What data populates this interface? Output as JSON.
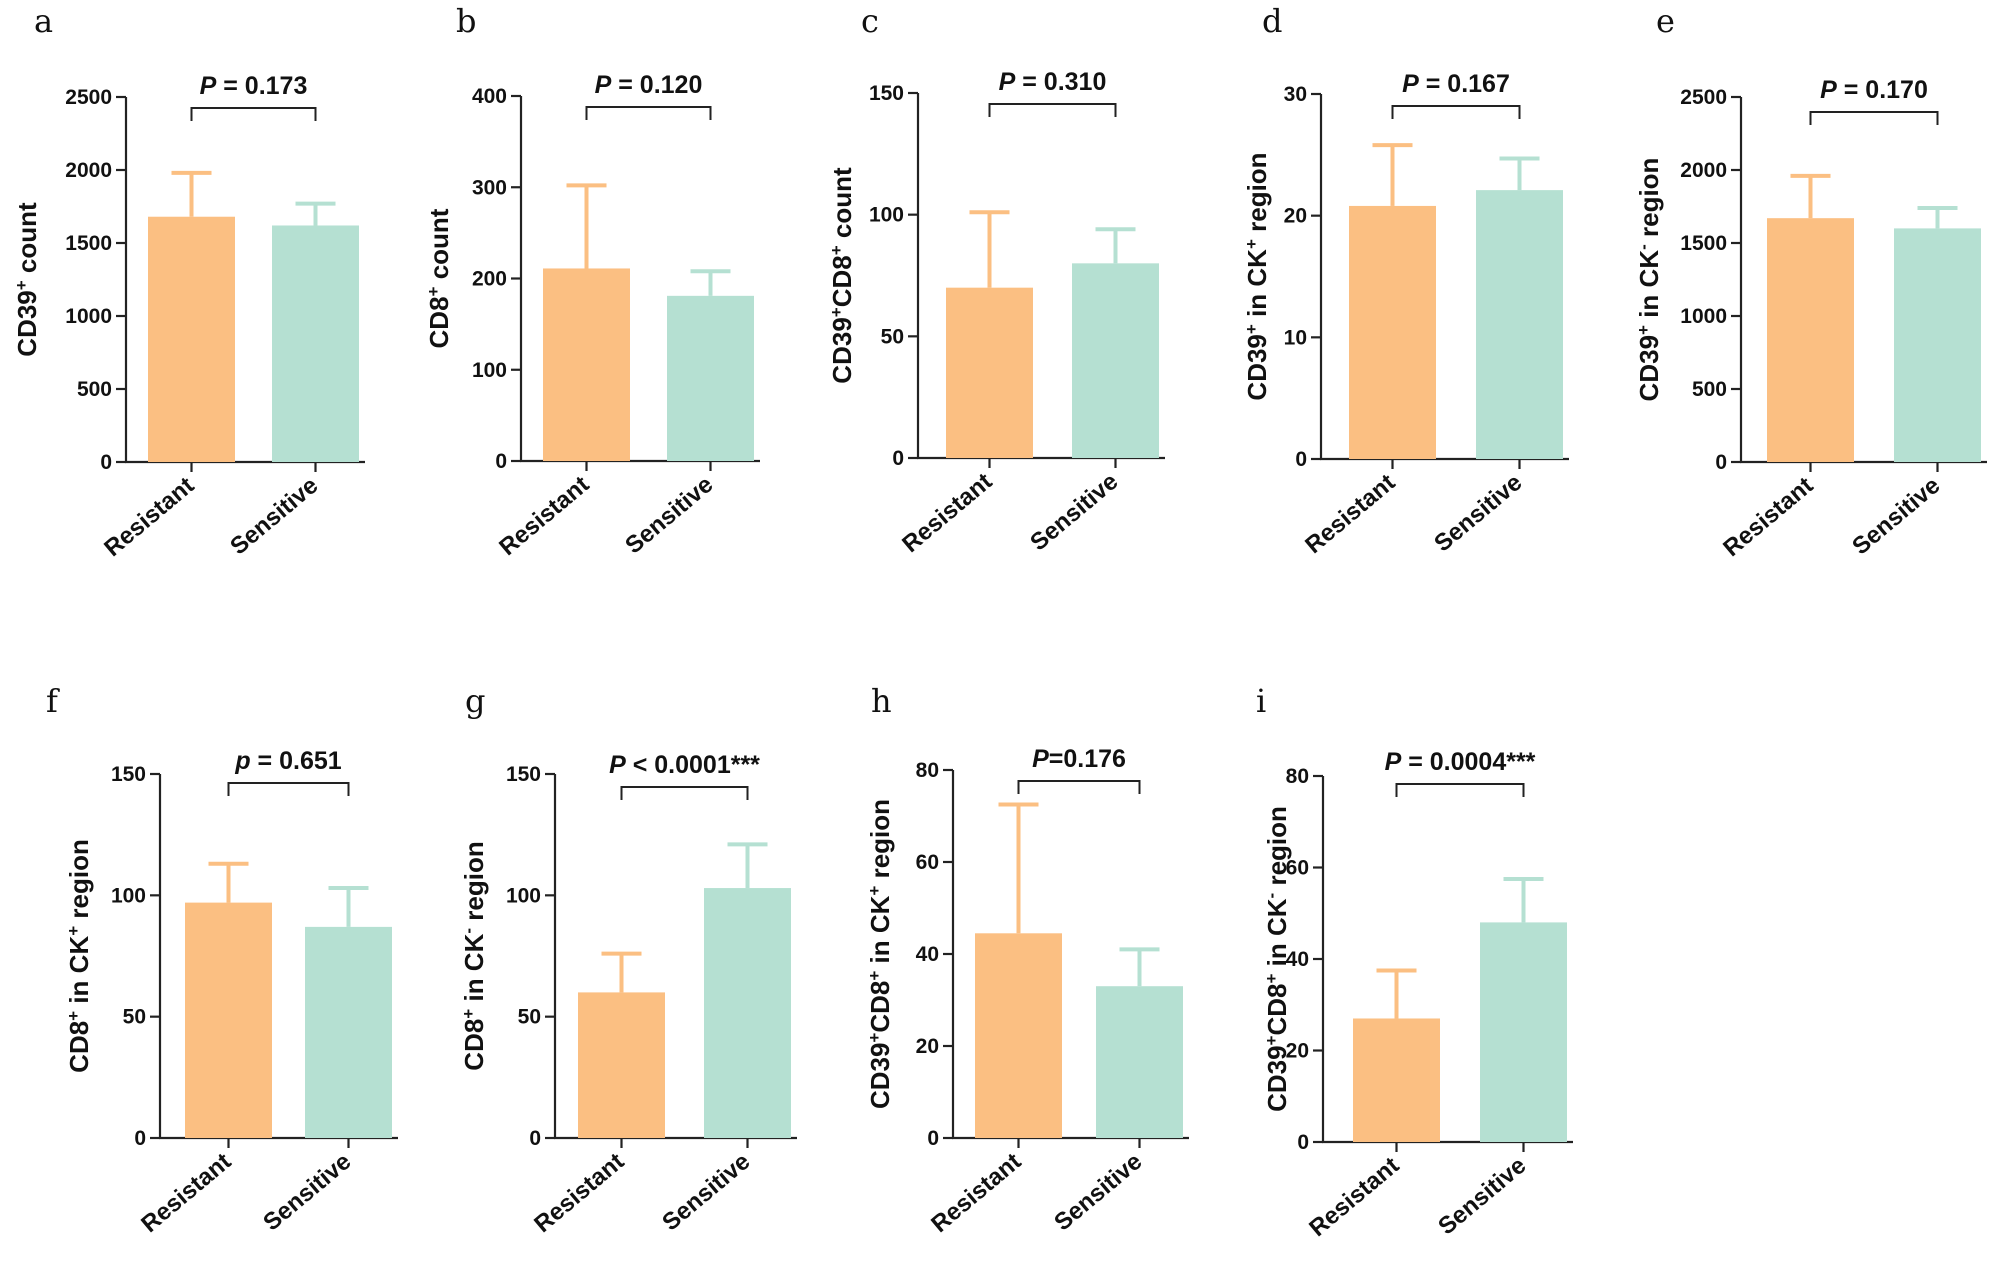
{
  "colors": {
    "resistant": "#fbbf82",
    "sensitive": "#b5e0d2",
    "axis": "#222222"
  },
  "chart_data": [
    {
      "type": "bar",
      "panel": "a",
      "ylabel": "CD39⁺ count",
      "categories": [
        "Resistant",
        "Sensitive"
      ],
      "values": [
        1680,
        1620
      ],
      "errors": [
        300,
        150
      ],
      "ylim": [
        0,
        2500
      ],
      "yticks": [
        "0",
        "500",
        "1000",
        "1500",
        "2000",
        "2500"
      ],
      "p": "P = 0.173"
    },
    {
      "type": "bar",
      "panel": "b",
      "ylabel": "CD8⁺ count",
      "categories": [
        "Resistant",
        "Sensitive"
      ],
      "values": [
        211,
        181
      ],
      "errors": [
        91,
        27
      ],
      "ylim": [
        0,
        400
      ],
      "yticks": [
        "0",
        "100",
        "200",
        "300",
        "400"
      ],
      "p": "P = 0.120"
    },
    {
      "type": "bar",
      "panel": "c",
      "ylabel": "CD39⁺CD8⁺ count",
      "categories": [
        "Resistant",
        "Sensitive"
      ],
      "values": [
        70,
        80
      ],
      "errors": [
        31,
        14
      ],
      "ylim": [
        0,
        150
      ],
      "yticks": [
        "0",
        "50",
        "100",
        "150"
      ],
      "p": "P = 0.310"
    },
    {
      "type": "bar",
      "panel": "d",
      "ylabel": "CD39⁺ in CK⁺ region",
      "categories": [
        "Resistant",
        "Sensitive"
      ],
      "values": [
        20.8,
        22.1
      ],
      "errors": [
        5,
        2.6
      ],
      "ylim": [
        0,
        30
      ],
      "yticks": [
        "0",
        "10",
        "20",
        "30"
      ],
      "p": "P = 0.167"
    },
    {
      "type": "bar",
      "panel": "e",
      "ylabel": "CD39⁺ in CK⁻ region",
      "categories": [
        "Resistant",
        "Sensitive"
      ],
      "values": [
        1670,
        1600
      ],
      "errors": [
        290,
        140
      ],
      "ylim": [
        0,
        2500
      ],
      "yticks": [
        "0",
        "500",
        "1000",
        "1500",
        "2000",
        "2500"
      ],
      "p": "P = 0.170"
    },
    {
      "type": "bar",
      "panel": "f",
      "ylabel": "CD8⁺ in CK⁺ region",
      "categories": [
        "Resistant",
        "Sensitive"
      ],
      "values": [
        97,
        87
      ],
      "errors": [
        16,
        16
      ],
      "ylim": [
        0,
        150
      ],
      "yticks": [
        "0",
        "50",
        "100",
        "150"
      ],
      "p": "p = 0.651"
    },
    {
      "type": "bar",
      "panel": "g",
      "ylabel": "CD8⁺ in CK⁻ region",
      "categories": [
        "Resistant",
        "Sensitive"
      ],
      "values": [
        60,
        103
      ],
      "errors": [
        16,
        18
      ],
      "ylim": [
        0,
        150
      ],
      "yticks": [
        "0",
        "50",
        "100",
        "150"
      ],
      "p": "P < 0.0001***"
    },
    {
      "type": "bar",
      "panel": "h",
      "ylabel": "CD39⁺CD8⁺ in CK⁺ region",
      "categories": [
        "Resistant",
        "Sensitive"
      ],
      "values": [
        44.5,
        33
      ],
      "errors": [
        28,
        8
      ],
      "ylim": [
        0,
        80
      ],
      "yticks": [
        "0",
        "20",
        "40",
        "60",
        "80"
      ],
      "p": "P=0.176"
    },
    {
      "type": "bar",
      "panel": "i",
      "ylabel": "CD39⁺CD8⁺ in CK⁻ region",
      "categories": [
        "Resistant",
        "Sensitive"
      ],
      "values": [
        27,
        48
      ],
      "errors": [
        10.5,
        9.5
      ],
      "ylim": [
        0,
        80
      ],
      "yticks": [
        "0",
        "20",
        "40",
        "60",
        "80"
      ],
      "p": "P = 0.0004***"
    }
  ]
}
